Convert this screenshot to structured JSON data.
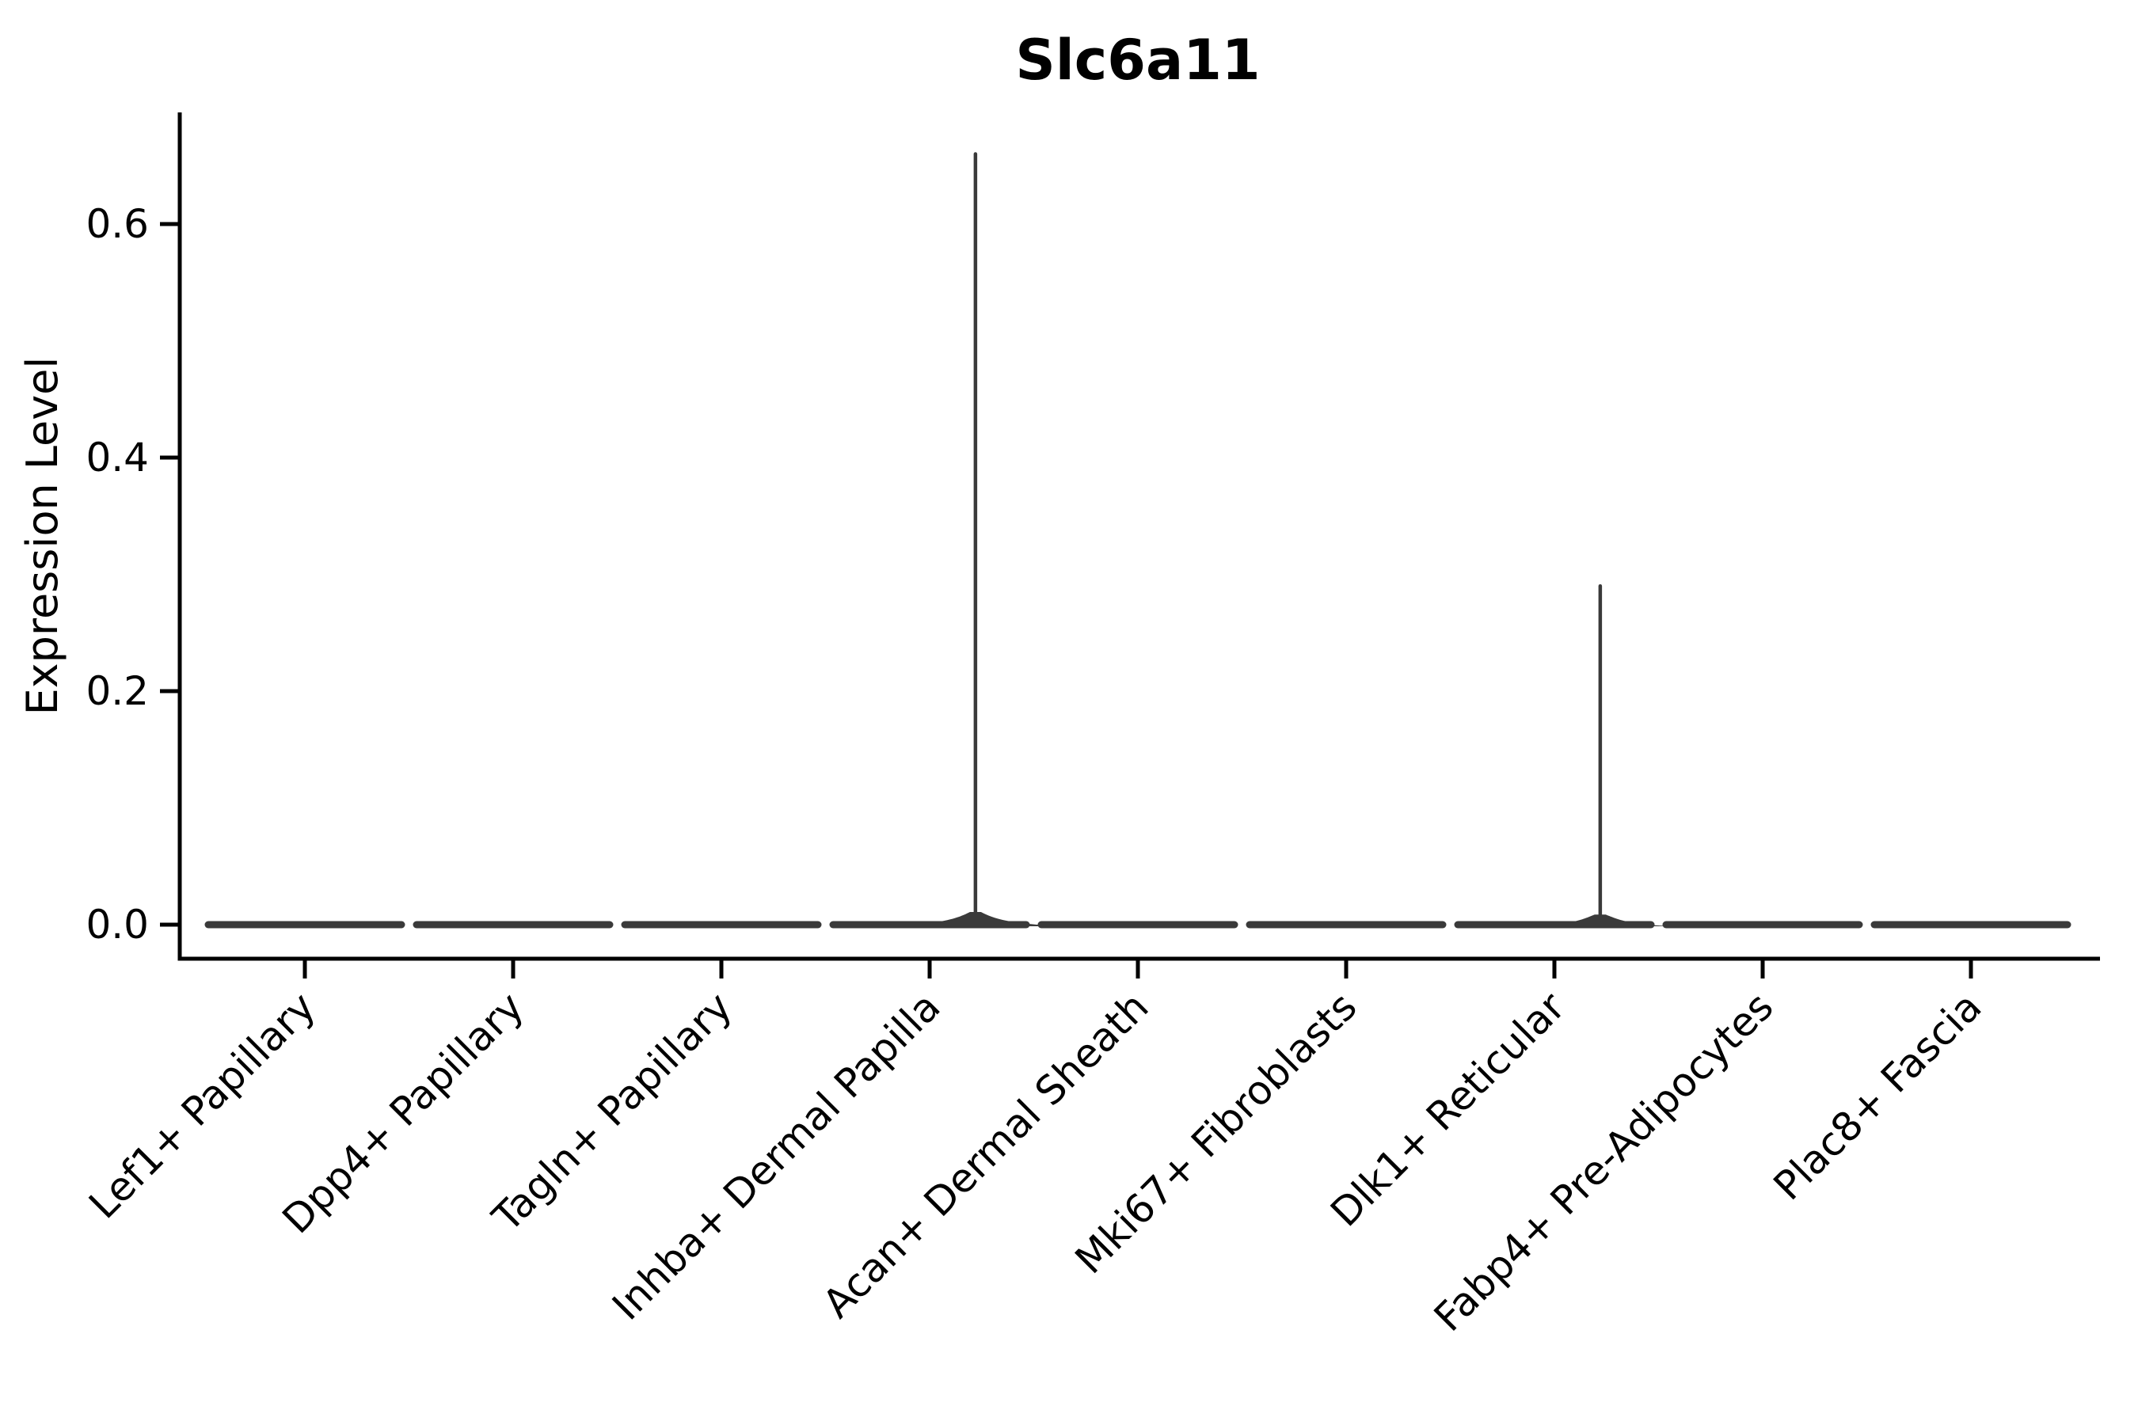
{
  "figure": {
    "title": "Slc6a11"
  },
  "chart_data": {
    "type": "violin",
    "title": "Slc6a11",
    "xlabel": "",
    "ylabel": "Expression Level",
    "categories": [
      "Lef1+ Papillary",
      "Dpp4+ Papillary",
      "Tagln+ Papillary",
      "Inhba+ Dermal Papilla",
      "Acan+ Dermal Sheath",
      "Mki67+ Fibroblasts",
      "Dlk1+ Reticular",
      "Fabp4+ Pre-Adipocytes",
      "Plac8+ Fascia"
    ],
    "series": [
      {
        "category": "Lef1+ Papillary",
        "center_value": 0.0,
        "max_value": 0.0
      },
      {
        "category": "Dpp4+ Papillary",
        "center_value": 0.0,
        "max_value": 0.0
      },
      {
        "category": "Tagln+ Papillary",
        "center_value": 0.0,
        "max_value": 0.0
      },
      {
        "category": "Inhba+ Dermal Papilla",
        "center_value": 0.0,
        "max_value": 0.66
      },
      {
        "category": "Acan+ Dermal Sheath",
        "center_value": 0.0,
        "max_value": 0.0
      },
      {
        "category": "Mki67+ Fibroblasts",
        "center_value": 0.0,
        "max_value": 0.0
      },
      {
        "category": "Dlk1+ Reticular",
        "center_value": 0.0,
        "max_value": 0.29
      },
      {
        "category": "Fabp4+ Pre-Adipocytes",
        "center_value": 0.0,
        "max_value": 0.0
      },
      {
        "category": "Plac8+ Fascia",
        "center_value": 0.0,
        "max_value": 0.0
      }
    ],
    "yticks": {
      "values": [
        0,
        0.2,
        0.4,
        0.6
      ],
      "labels": [
        "0.0",
        "0.2",
        "0.4",
        "0.6"
      ]
    },
    "ylim": [
      -0.029,
      0.695
    ],
    "grid": false,
    "legend": "none",
    "xtick_rotation_deg": 45,
    "spike_offset_fraction": 0.22,
    "colors": {
      "violin": "#3A3A3A",
      "axis": "#000000",
      "text": "#000000",
      "background": "#FFFFFF"
    }
  }
}
